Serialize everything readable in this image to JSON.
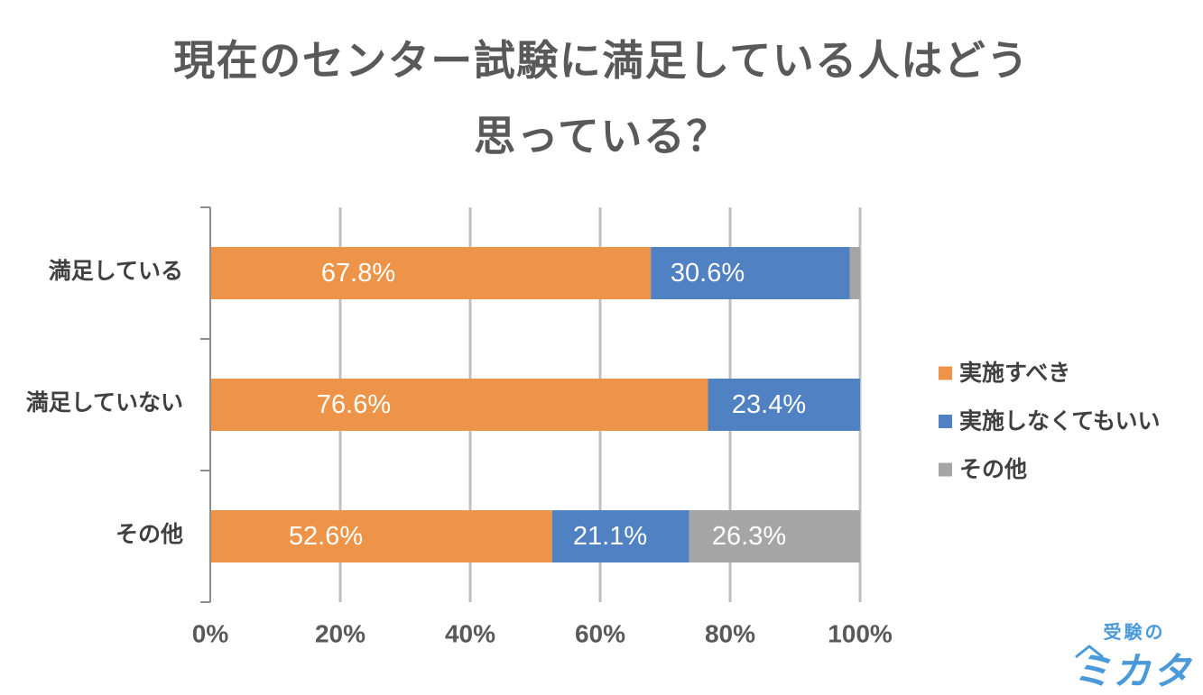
{
  "chart_data": {
    "type": "bar",
    "orientation": "horizontal",
    "stacked": "percent",
    "title": [
      "現在のセンター試験に満足している人はどう",
      "思っている？"
    ],
    "categories": [
      "満足している",
      "満足していない",
      "その他"
    ],
    "series": [
      {
        "name": "実施すべき",
        "color": "#ED9448",
        "values": [
          67.8,
          76.6,
          52.6
        ],
        "labels": [
          "67.8%",
          "76.6%",
          "52.6%"
        ]
      },
      {
        "name": "実施しなくてもいい",
        "color": "#4F81C3",
        "values": [
          30.6,
          23.4,
          21.1
        ],
        "labels": [
          "30.6%",
          "23.4%",
          "21.1%"
        ]
      },
      {
        "name": "その他",
        "color": "#A5A5A5",
        "values": [
          1.6,
          0,
          26.3
        ],
        "labels": [
          "",
          "",
          "26.3%"
        ]
      }
    ],
    "xlim": [
      0,
      100
    ],
    "x_ticks": [
      0,
      20,
      40,
      60,
      80,
      100
    ],
    "x_tick_labels": [
      "0%",
      "20%",
      "40%",
      "60%",
      "80%",
      "100%"
    ],
    "grid": true,
    "legend": "right"
  },
  "logo": {
    "top": "受験の",
    "main": "ミカタ",
    "color": "#4A9ADA"
  }
}
